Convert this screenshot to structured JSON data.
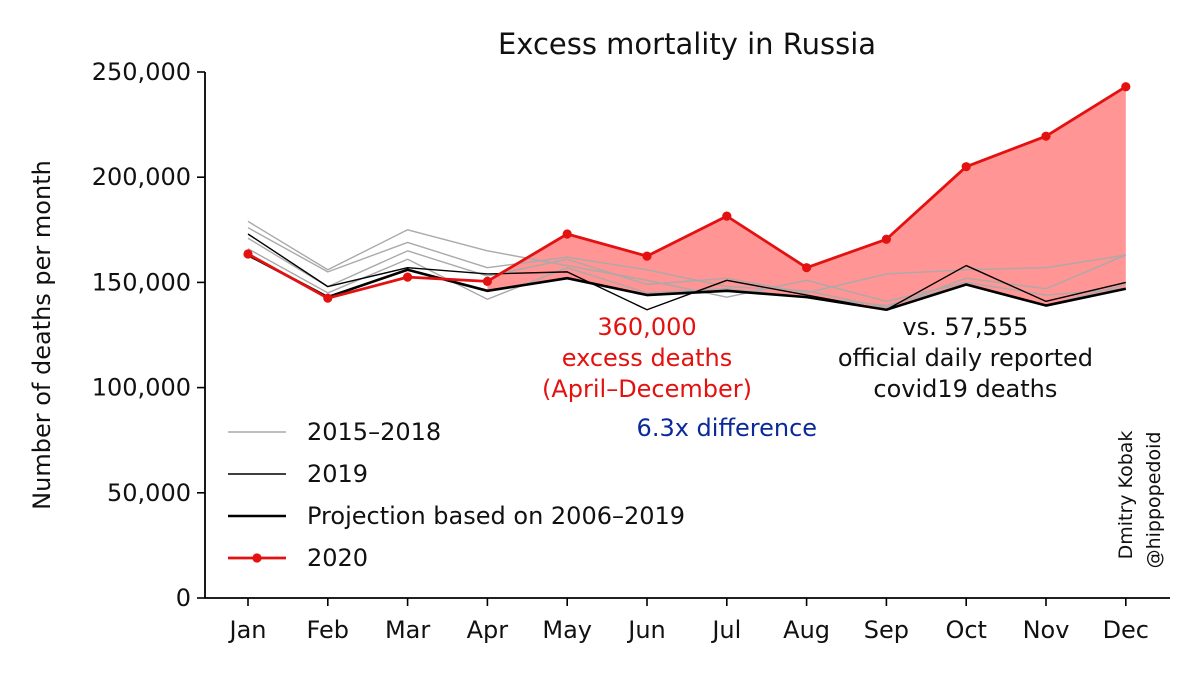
{
  "chart_data": {
    "type": "line",
    "title": "Excess mortality in Russia",
    "xlabel": "",
    "ylabel": "Number of deaths per month",
    "ylim": [
      0,
      250000
    ],
    "y_ticks": [
      0,
      50000,
      100000,
      150000,
      200000,
      250000
    ],
    "y_tick_labels": [
      "0",
      "50,000",
      "100,000",
      "150,000",
      "200,000",
      "250,000"
    ],
    "categories": [
      "Jan",
      "Feb",
      "Mar",
      "Apr",
      "May",
      "Jun",
      "Jul",
      "Aug",
      "Sep",
      "Oct",
      "Nov",
      "Dec"
    ],
    "grid": false,
    "legend_position": "lower-left",
    "series": [
      {
        "name": "2015–2018",
        "role": "history",
        "color": "#aaaaaa",
        "values": [
          179000,
          156000,
          175000,
          165000,
          158000,
          151000,
          143000,
          151000,
          141000,
          150000,
          144000,
          147000
        ]
      },
      {
        "name": "",
        "role": "history",
        "color": "#aaaaaa",
        "values": [
          176000,
          155000,
          169000,
          157000,
          162000,
          156000,
          148000,
          146000,
          138000,
          152000,
          147000,
          163000
        ]
      },
      {
        "name": "",
        "role": "history",
        "color": "#aaaaaa",
        "values": [
          171000,
          148000,
          165000,
          153000,
          161000,
          149000,
          152000,
          145000,
          154000,
          156000,
          157000,
          163000
        ]
      },
      {
        "name": "",
        "role": "history",
        "color": "#aaaaaa",
        "values": [
          166000,
          145000,
          161000,
          142000,
          157000,
          145000,
          147000,
          143000,
          139000,
          149000,
          139000,
          149000
        ]
      },
      {
        "name": "2019",
        "role": "2019",
        "color": "#000000",
        "values": [
          173000,
          148000,
          157000,
          154000,
          155000,
          137000,
          151000,
          144000,
          137000,
          158000,
          141000,
          150000
        ]
      },
      {
        "name": "Projection based on 2006–2019",
        "role": "projection",
        "color": "#000000",
        "values": [
          163000,
          143000,
          156000,
          146000,
          152000,
          144000,
          146000,
          143000,
          137000,
          149000,
          139000,
          147000
        ]
      },
      {
        "name": "2020",
        "role": "2020",
        "color": "#e3110f",
        "values": [
          163500,
          142500,
          152500,
          150500,
          173000,
          162500,
          181500,
          157000,
          170500,
          205000,
          219500,
          243000
        ]
      }
    ],
    "fill_between": {
      "from_series": "Projection based on 2006–2019",
      "to_series": "2020",
      "start": "Apr",
      "color": "#ff8f8f"
    },
    "annotations": [
      {
        "lines": [
          "360,000",
          "excess deaths",
          "(April–December)"
        ],
        "color": "#e3110f",
        "anchor_x": "Jun",
        "anchor_y": 125000
      },
      {
        "lines": [
          "vs. 57,555",
          "official daily reported",
          "covid19 deaths"
        ],
        "color": "#111111",
        "anchor_x": "Sep",
        "anchor_y": 125000
      },
      {
        "lines": [
          "6.3x difference"
        ],
        "color": "#0a2a9a",
        "anchor_x": "Jul",
        "anchor_y": 77000
      }
    ],
    "credit": [
      "Dmitry Kobak",
      "@hippopedoid"
    ]
  }
}
